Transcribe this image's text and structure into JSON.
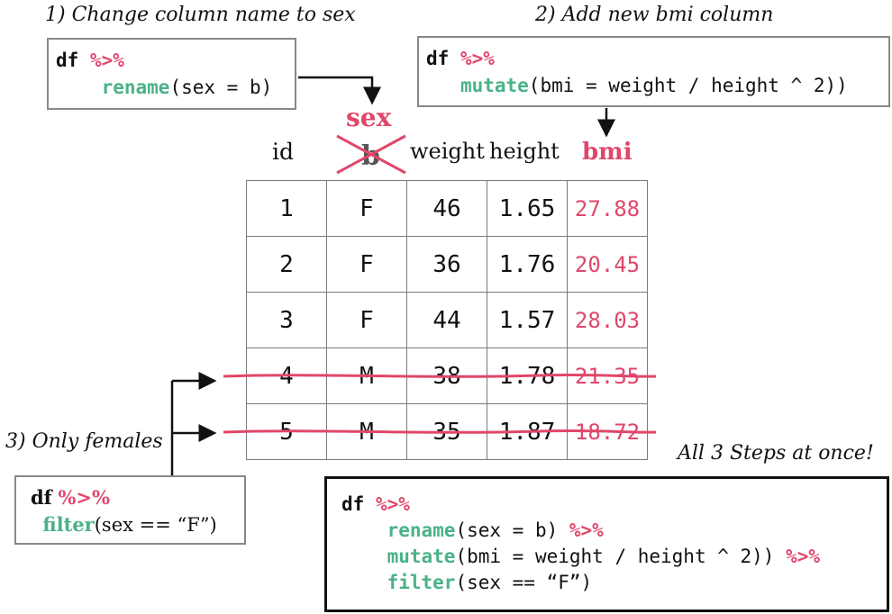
{
  "colors": {
    "accent": "#e0476b",
    "function": "#4bb287",
    "strike": "#e0476b",
    "border": "#7a7a7a"
  },
  "steps": {
    "step1": {
      "caption": "1) Change column name to sex",
      "code": {
        "df": "df",
        "pipe": "%>%",
        "fn": "rename",
        "args": "(sex = b)"
      }
    },
    "step2": {
      "caption": "2) Add new bmi column",
      "code": {
        "df": "df",
        "pipe": "%>%",
        "fn": "mutate",
        "args": "(bmi = weight / height ^ 2))"
      }
    },
    "step3": {
      "caption": "3) Only females",
      "code": {
        "df": "df",
        "pipe": "%>%",
        "fn": "filter",
        "args": "(sex == “F”)"
      }
    }
  },
  "combined": {
    "caption": "All 3 Steps at once!",
    "line1": {
      "df": "df",
      "pipe": "%>%"
    },
    "line2": {
      "fn": "rename",
      "args": "(sex = b) ",
      "pipe": "%>%"
    },
    "line3": {
      "fn": "mutate",
      "args": "(bmi = weight / height ^ 2)) ",
      "pipe": "%>%"
    },
    "line4": {
      "fn": "filter",
      "args": "(sex == “F”)"
    }
  },
  "table": {
    "headers": {
      "id": "id",
      "old_b": "b",
      "new_sex": "sex",
      "weight": "weight",
      "height": "height",
      "bmi": "bmi"
    },
    "rows": [
      {
        "id": "1",
        "sex": "F",
        "weight": "46",
        "height": "1.65",
        "bmi": "27.88",
        "filtered_out": false
      },
      {
        "id": "2",
        "sex": "F",
        "weight": "36",
        "height": "1.76",
        "bmi": "20.45",
        "filtered_out": false
      },
      {
        "id": "3",
        "sex": "F",
        "weight": "44",
        "height": "1.57",
        "bmi": "28.03",
        "filtered_out": false
      },
      {
        "id": "4",
        "sex": "M",
        "weight": "38",
        "height": "1.78",
        "bmi": "21.35",
        "filtered_out": true
      },
      {
        "id": "5",
        "sex": "M",
        "weight": "35",
        "height": "1.87",
        "bmi": "18.72",
        "filtered_out": true
      }
    ]
  }
}
